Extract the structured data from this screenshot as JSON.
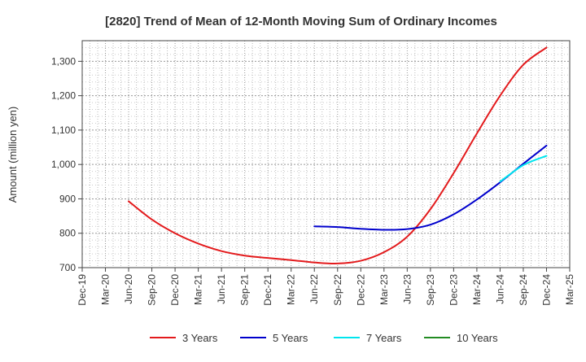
{
  "chart_data": {
    "type": "line",
    "title": "[2820]  Trend of Mean of 12-Month Moving Sum of Ordinary Incomes",
    "ylabel": "Amount (million yen)",
    "xlabel": "",
    "ylim": [
      700,
      1360
    ],
    "yticks": [
      700,
      800,
      900,
      1000,
      1100,
      1200,
      1300
    ],
    "ytick_labels": [
      "700",
      "800",
      "900",
      "1,000",
      "1,100",
      "1,200",
      "1,300"
    ],
    "x_categories": [
      "Dec-19",
      "Mar-20",
      "Jun-20",
      "Sep-20",
      "Dec-20",
      "Mar-21",
      "Jun-21",
      "Sep-21",
      "Dec-21",
      "Mar-22",
      "Jun-22",
      "Sep-22",
      "Dec-22",
      "Mar-23",
      "Jun-23",
      "Sep-23",
      "Dec-23",
      "Mar-24",
      "Jun-24",
      "Sep-24",
      "Dec-24",
      "Mar-25"
    ],
    "grid": true,
    "legend_position": "bottom",
    "series": [
      {
        "name": "3 Years",
        "color": "#e31a1c",
        "x": [
          2,
          3,
          4,
          5,
          6,
          7,
          8,
          9,
          10,
          11,
          12,
          13,
          14,
          15,
          16,
          17,
          18,
          19,
          20
        ],
        "values": [
          893,
          840,
          800,
          770,
          748,
          735,
          728,
          722,
          715,
          712,
          720,
          745,
          790,
          870,
          975,
          1090,
          1200,
          1290,
          1340
        ]
      },
      {
        "name": "5 Years",
        "color": "#0000cc",
        "x": [
          10,
          11,
          12,
          13,
          14,
          15,
          16,
          17,
          18,
          19,
          20
        ],
        "values": [
          820,
          818,
          813,
          810,
          812,
          825,
          855,
          898,
          948,
          1002,
          1055
        ]
      },
      {
        "name": "7 Years",
        "color": "#00e5ee",
        "x": [
          18,
          19,
          20
        ],
        "values": [
          950,
          998,
          1025
        ]
      },
      {
        "name": "10 Years",
        "color": "#228b22",
        "x": [],
        "values": []
      }
    ]
  }
}
